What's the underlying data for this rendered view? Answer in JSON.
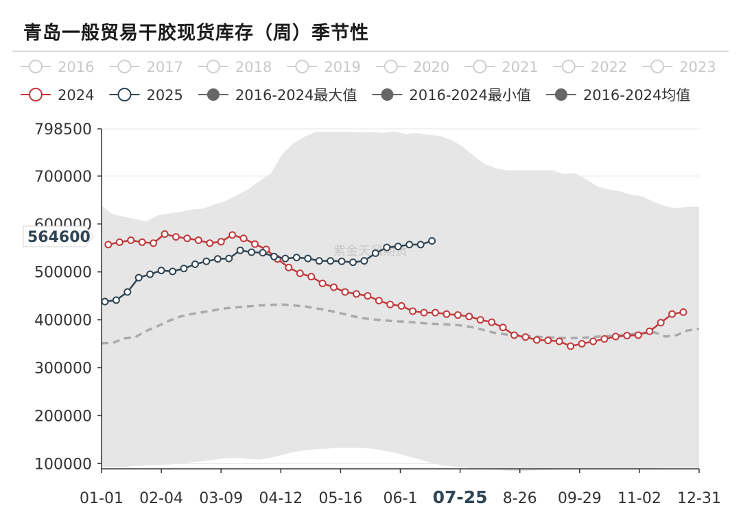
{
  "title": "青岛一般贸易干胶现货库存（周）季节性",
  "watermark": "紫金天风期货",
  "tooltip_value": "564600",
  "legend": [
    {
      "label": "2016",
      "color": "#cfcfcf",
      "active": false,
      "kind": "line"
    },
    {
      "label": "2017",
      "color": "#cfcfcf",
      "active": false,
      "kind": "line"
    },
    {
      "label": "2018",
      "color": "#cfcfcf",
      "active": false,
      "kind": "line"
    },
    {
      "label": "2019",
      "color": "#cfcfcf",
      "active": false,
      "kind": "line"
    },
    {
      "label": "2020",
      "color": "#cfcfcf",
      "active": false,
      "kind": "line"
    },
    {
      "label": "2021",
      "color": "#cfcfcf",
      "active": false,
      "kind": "line"
    },
    {
      "label": "2022",
      "color": "#cfcfcf",
      "active": false,
      "kind": "line"
    },
    {
      "label": "2023",
      "color": "#cfcfcf",
      "active": false,
      "kind": "line"
    },
    {
      "label": "2024",
      "color": "#c0393b",
      "active": true,
      "kind": "line"
    },
    {
      "label": "2025",
      "color": "#2f4554",
      "active": true,
      "kind": "line"
    },
    {
      "label": "2016-2024最大值",
      "color": "#666666",
      "active": true,
      "kind": "dot"
    },
    {
      "label": "2016-2024最小值",
      "color": "#666666",
      "active": true,
      "kind": "dot"
    },
    {
      "label": "2016-2024均值",
      "color": "#666666",
      "active": true,
      "kind": "dot"
    }
  ],
  "chart_data": {
    "type": "line",
    "title": "青岛一般贸易干胶现货库存（周）季节性",
    "x_ticks": [
      "01-01",
      "02-04",
      "03-09",
      "04-12",
      "05-16",
      "06-1",
      "07-25",
      "8-26",
      "09-29",
      "11-02",
      "12-31"
    ],
    "x_highlight": "07-25",
    "y_ticks": [
      "798500",
      "700000",
      "600000",
      "500000",
      "400000",
      "300000",
      "200000",
      "100000"
    ],
    "ylim": [
      89000,
      798500
    ],
    "grid": true,
    "legend_position": "top",
    "colors": {
      "y2024": "#c0393b",
      "y2025": "#2f4554",
      "band": "#e6e6e6",
      "mean": "#aaaaaa"
    },
    "band": {
      "x": [
        0,
        1,
        2,
        3,
        4,
        5,
        6,
        7,
        8,
        9,
        10,
        11,
        12,
        13,
        14,
        15,
        16,
        17,
        18,
        19,
        20,
        21,
        22,
        23,
        24,
        25,
        26,
        27,
        28,
        29,
        30,
        31,
        32,
        33,
        34,
        35,
        36,
        37,
        38,
        39,
        40,
        41,
        42,
        43,
        44,
        45,
        46,
        47,
        48,
        49,
        50,
        51,
        52,
        53
      ],
      "upper": [
        638000,
        620000,
        615000,
        610000,
        605000,
        618000,
        622000,
        625000,
        630000,
        632000,
        640000,
        648000,
        660000,
        672000,
        690000,
        705000,
        745000,
        768000,
        782000,
        792000,
        792000,
        792000,
        792000,
        791000,
        792000,
        790000,
        793000,
        788000,
        790000,
        786000,
        784000,
        775000,
        762000,
        742000,
        725000,
        716000,
        712000,
        712000,
        712000,
        712000,
        712000,
        704000,
        706000,
        693000,
        678000,
        672000,
        668000,
        661000,
        657000,
        646000,
        637000,
        633000,
        636000,
        636000
      ],
      "lower": [
        93000,
        92000,
        93000,
        95000,
        96000,
        97000,
        98000,
        100000,
        103000,
        105000,
        108000,
        111000,
        112000,
        110000,
        108000,
        112000,
        118000,
        124000,
        127000,
        130000,
        131000,
        133000,
        133000,
        133000,
        131000,
        127000,
        123000,
        116000,
        110000,
        103000,
        97000,
        94000,
        92000,
        89000,
        88000,
        87000,
        85000,
        84000,
        85000,
        86000,
        87000,
        88000,
        89000,
        89000,
        89000,
        89000,
        89000,
        89000,
        88000,
        90000,
        91000,
        91000,
        91000,
        91000
      ]
    },
    "series": [
      {
        "name": "2016-2024均值",
        "dashed": true,
        "x": [
          0,
          1,
          2,
          3,
          4,
          5,
          6,
          7,
          8,
          9,
          10,
          11,
          12,
          13,
          14,
          15,
          16,
          17,
          18,
          19,
          20,
          21,
          22,
          23,
          24,
          25,
          26,
          27,
          28,
          29,
          30,
          31,
          32,
          33,
          34,
          35,
          36,
          37,
          38,
          39,
          40,
          41,
          42,
          43,
          44,
          45,
          46,
          47,
          48,
          49,
          50,
          51,
          52,
          53
        ],
        "values": [
          351000,
          352000,
          361000,
          364000,
          377000,
          387000,
          398000,
          407000,
          412000,
          416000,
          420000,
          424000,
          426000,
          428000,
          430000,
          431000,
          432000,
          430000,
          428000,
          424000,
          420000,
          415000,
          409000,
          404000,
          401000,
          399000,
          397000,
          396000,
          394000,
          392000,
          391000,
          390000,
          388000,
          384000,
          378000,
          372000,
          369000,
          368000,
          366000,
          364000,
          363000,
          362000,
          362000,
          363000,
          365000,
          366000,
          368000,
          370000,
          372000,
          374000,
          365000,
          368000,
          378000,
          381000
        ]
      },
      {
        "name": "2024",
        "x": [
          0.6,
          1.6,
          2.6,
          3.6,
          4.6,
          5.6,
          6.6,
          7.6,
          8.6,
          9.6,
          10.6,
          11.6,
          12.6,
          13.6,
          14.6,
          15.6,
          16.6,
          17.6,
          18.6,
          19.6,
          20.6,
          21.6,
          22.6,
          23.6,
          24.6,
          25.6,
          26.6,
          27.6,
          28.6,
          29.6,
          30.6,
          31.6,
          32.6,
          33.6,
          34.6,
          35.6,
          36.6,
          37.6,
          38.6,
          39.6,
          40.6,
          41.6,
          42.6,
          43.6,
          44.6,
          45.6,
          46.6,
          47.6,
          48.6,
          49.6,
          50.6,
          51.6
        ],
        "values": [
          557000,
          562000,
          566000,
          562000,
          560000,
          579000,
          573000,
          570000,
          566000,
          560000,
          563000,
          577000,
          570000,
          558000,
          547000,
          527000,
          509000,
          497000,
          490000,
          476000,
          468000,
          458000,
          454000,
          450000,
          440000,
          432000,
          429000,
          418000,
          415000,
          415000,
          412000,
          410000,
          407000,
          400000,
          395000,
          384000,
          368000,
          364000,
          358000,
          357000,
          355000,
          345000,
          350000,
          355000,
          360000,
          365000,
          367000,
          368000,
          376000,
          394000,
          412000,
          416000
        ]
      },
      {
        "name": "2025",
        "x": [
          0.3,
          1.3,
          2.3,
          3.3,
          4.3,
          5.3,
          6.3,
          7.3,
          8.3,
          9.3,
          10.3,
          11.3,
          12.3,
          13.3,
          14.3,
          15.3,
          16.3,
          17.3,
          18.3,
          19.3,
          20.3,
          21.3,
          22.3,
          23.3,
          24.3,
          25.3,
          26.3,
          27.3,
          28.3,
          29.3
        ],
        "values": [
          438000,
          441000,
          458000,
          488000,
          495000,
          503000,
          501000,
          507000,
          516000,
          522000,
          527000,
          528000,
          545000,
          541000,
          540000,
          532000,
          528000,
          530000,
          528000,
          523000,
          523000,
          522000,
          520000,
          523000,
          539000,
          551000,
          553000,
          557000,
          557000,
          564600
        ]
      }
    ]
  }
}
